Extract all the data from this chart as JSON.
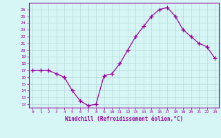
{
  "x": [
    0,
    1,
    2,
    3,
    4,
    5,
    6,
    7,
    8,
    9,
    10,
    11,
    12,
    13,
    14,
    15,
    16,
    17,
    18,
    19,
    20,
    21,
    22,
    23
  ],
  "y": [
    17.0,
    17.0,
    17.0,
    16.5,
    16.0,
    14.0,
    12.5,
    11.8,
    12.0,
    16.2,
    16.5,
    18.0,
    20.0,
    22.0,
    23.5,
    25.0,
    26.0,
    26.3,
    25.0,
    23.0,
    22.0,
    21.0,
    20.5,
    18.8
  ],
  "line_color": "#990099",
  "marker": "+",
  "marker_size": 4,
  "bg_color": "#d6f5f5",
  "grid_color": "#b8dada",
  "xlabel": "Windchill (Refroidissement éolien,°C)",
  "ylim": [
    11.5,
    27
  ],
  "xlim": [
    -0.5,
    23.5
  ],
  "yticks": [
    12,
    13,
    14,
    15,
    16,
    17,
    18,
    19,
    20,
    21,
    22,
    23,
    24,
    25,
    26
  ],
  "xticks": [
    0,
    1,
    2,
    3,
    4,
    5,
    6,
    7,
    8,
    9,
    10,
    11,
    12,
    13,
    14,
    15,
    16,
    17,
    18,
    19,
    20,
    21,
    22,
    23
  ],
  "axis_label_color": "#990099",
  "tick_color": "#990099",
  "spine_color": "#990099"
}
